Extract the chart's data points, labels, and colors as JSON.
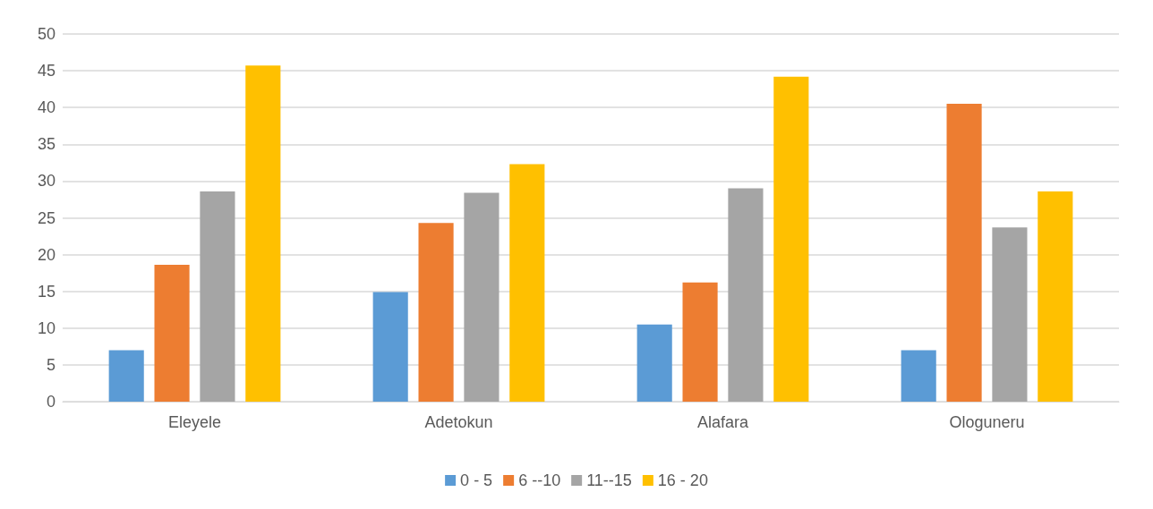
{
  "chart_data": {
    "type": "bar",
    "categories": [
      "Eleyele",
      "Adetokun",
      "Alafara",
      "Ologuneru"
    ],
    "series": [
      {
        "name": "0 - 5",
        "color": "#5b9bd5",
        "values": [
          7.0,
          14.9,
          10.5,
          7.0
        ]
      },
      {
        "name": "6 --10",
        "color": "#ed7d31",
        "values": [
          18.6,
          24.3,
          16.2,
          40.5
        ]
      },
      {
        "name": "11--15",
        "color": "#a5a5a5",
        "values": [
          28.6,
          28.4,
          29.0,
          23.7
        ]
      },
      {
        "name": "16 - 20",
        "color": "#ffc000",
        "values": [
          45.7,
          32.3,
          44.2,
          28.6
        ]
      }
    ],
    "ylim": [
      0,
      50
    ],
    "yticks": [
      0,
      5,
      10,
      15,
      20,
      25,
      30,
      35,
      40,
      45,
      50
    ],
    "grid": "y",
    "legend": "bottom"
  }
}
